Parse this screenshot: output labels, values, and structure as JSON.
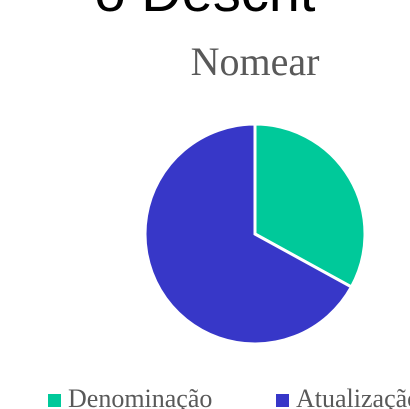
{
  "heading": "o Descrit",
  "chart_data": {
    "type": "pie",
    "title": "Nomear",
    "categories": [
      "Denominação",
      "Atualização"
    ],
    "values": [
      33,
      67
    ],
    "colors": [
      "#00c99a",
      "#3737c8"
    ],
    "legend": "bottom"
  }
}
